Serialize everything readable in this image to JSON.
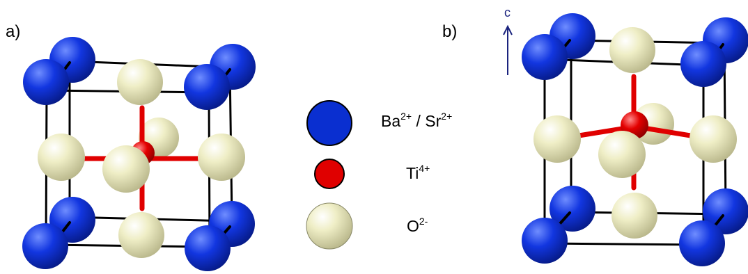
{
  "panels": {
    "a": {
      "label": "a)"
    },
    "b": {
      "label": "b)"
    }
  },
  "axis": {
    "label": "c"
  },
  "legend": {
    "items": [
      {
        "name": "barium-strontium",
        "text_parts": [
          "Ba",
          "2+",
          " / Sr",
          "2+"
        ],
        "color": "#0a2fd0"
      },
      {
        "name": "titanium",
        "text_parts": [
          "Ti",
          "4+"
        ],
        "color": "#e00000"
      },
      {
        "name": "oxygen",
        "text_parts": [
          "O",
          "2-"
        ],
        "color": "#ecebbd"
      }
    ]
  },
  "colors": {
    "barium": "#0a2fd0",
    "titanium": "#e00000",
    "oxygen": "#ecebbd",
    "edges": "#000000",
    "bonds": "#e00000",
    "axis": "#1a237e"
  }
}
